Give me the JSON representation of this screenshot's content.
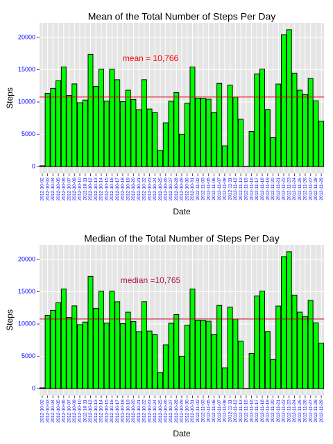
{
  "chart_data": [
    {
      "type": "bar",
      "title": "Mean of the Total Number of Steps Per Day",
      "x_label": "Date",
      "y_label": "Steps",
      "categories": [
        "2012-10-02",
        "2012-10-03",
        "2012-10-04",
        "2012-10-05",
        "2012-10-06",
        "2012-10-07",
        "2012-10-09",
        "2012-10-10",
        "2012-10-11",
        "2012-10-12",
        "2012-10-13",
        "2012-10-14",
        "2012-10-15",
        "2012-10-16",
        "2012-10-17",
        "2012-10-18",
        "2012-10-19",
        "2012-10-20",
        "2012-10-21",
        "2012-10-22",
        "2012-10-23",
        "2012-10-24",
        "2012-10-25",
        "2012-10-26",
        "2012-10-27",
        "2012-10-28",
        "2012-10-29",
        "2012-10-30",
        "2012-10-31",
        "2012-11-02",
        "2012-11-03",
        "2012-11-05",
        "2012-11-06",
        "2012-11-07",
        "2012-11-08",
        "2012-11-11",
        "2012-11-12",
        "2012-11-13",
        "2012-11-15",
        "2012-11-16",
        "2012-11-17",
        "2012-11-18",
        "2012-11-19",
        "2012-11-20",
        "2012-11-21",
        "2012-11-22",
        "2012-11-23",
        "2012-11-24",
        "2012-11-25",
        "2012-11-26",
        "2012-11-27",
        "2012-11-28",
        "2012-11-29"
      ],
      "values": [
        126,
        11352,
        12116,
        13294,
        15420,
        11015,
        12811,
        9900,
        10304,
        17382,
        12426,
        15098,
        10139,
        15084,
        13452,
        10056,
        11829,
        10395,
        8821,
        13460,
        8918,
        8355,
        2492,
        6778,
        10119,
        11458,
        5018,
        9819,
        15414,
        10600,
        10571,
        10439,
        8334,
        12883,
        3219,
        12608,
        10765,
        7336,
        41,
        5441,
        14339,
        15110,
        8841,
        4472,
        12787,
        20427,
        21194,
        14478,
        11834,
        11162,
        13646,
        10183,
        7047
      ],
      "color": "#00ff00",
      "ylim": [
        -1060,
        22254
      ],
      "yticks": [
        0,
        5000,
        10000,
        15000,
        20000
      ],
      "grid": true,
      "hline": 10766,
      "hline_color": "#e8000b",
      "annotation": "mean = 10,766",
      "annotation_color": "#ff0000"
    },
    {
      "type": "bar",
      "title": "Median of the Total Number of Steps Per Day",
      "x_label": "Date",
      "y_label": "Steps",
      "categories": [
        "2012-10-02",
        "2012-10-03",
        "2012-10-04",
        "2012-10-05",
        "2012-10-06",
        "2012-10-07",
        "2012-10-09",
        "2012-10-10",
        "2012-10-11",
        "2012-10-12",
        "2012-10-13",
        "2012-10-14",
        "2012-10-15",
        "2012-10-16",
        "2012-10-17",
        "2012-10-18",
        "2012-10-19",
        "2012-10-20",
        "2012-10-21",
        "2012-10-22",
        "2012-10-23",
        "2012-10-24",
        "2012-10-25",
        "2012-10-26",
        "2012-10-27",
        "2012-10-28",
        "2012-10-29",
        "2012-10-30",
        "2012-10-31",
        "2012-11-02",
        "2012-11-03",
        "2012-11-05",
        "2012-11-06",
        "2012-11-07",
        "2012-11-08",
        "2012-11-11",
        "2012-11-12",
        "2012-11-13",
        "2012-11-15",
        "2012-11-16",
        "2012-11-17",
        "2012-11-18",
        "2012-11-19",
        "2012-11-20",
        "2012-11-21",
        "2012-11-22",
        "2012-11-23",
        "2012-11-24",
        "2012-11-25",
        "2012-11-26",
        "2012-11-27",
        "2012-11-28",
        "2012-11-29"
      ],
      "values": [
        126,
        11352,
        12116,
        13294,
        15420,
        11015,
        12811,
        9900,
        10304,
        17382,
        12426,
        15098,
        10139,
        15084,
        13452,
        10056,
        11829,
        10395,
        8821,
        13460,
        8918,
        8355,
        2492,
        6778,
        10119,
        11458,
        5018,
        9819,
        15414,
        10600,
        10571,
        10439,
        8334,
        12883,
        3219,
        12608,
        10765,
        7336,
        41,
        5441,
        14339,
        15110,
        8841,
        4472,
        12787,
        20427,
        21194,
        14478,
        11834,
        11162,
        13646,
        10183,
        7047
      ],
      "color": "#00ff00",
      "ylim": [
        -1060,
        22254
      ],
      "yticks": [
        0,
        5000,
        10000,
        15000,
        20000
      ],
      "grid": true,
      "hline": 10765,
      "hline_color": "#c0001a",
      "annotation": "median =10,765",
      "annotation_color": "#b0123c"
    }
  ]
}
